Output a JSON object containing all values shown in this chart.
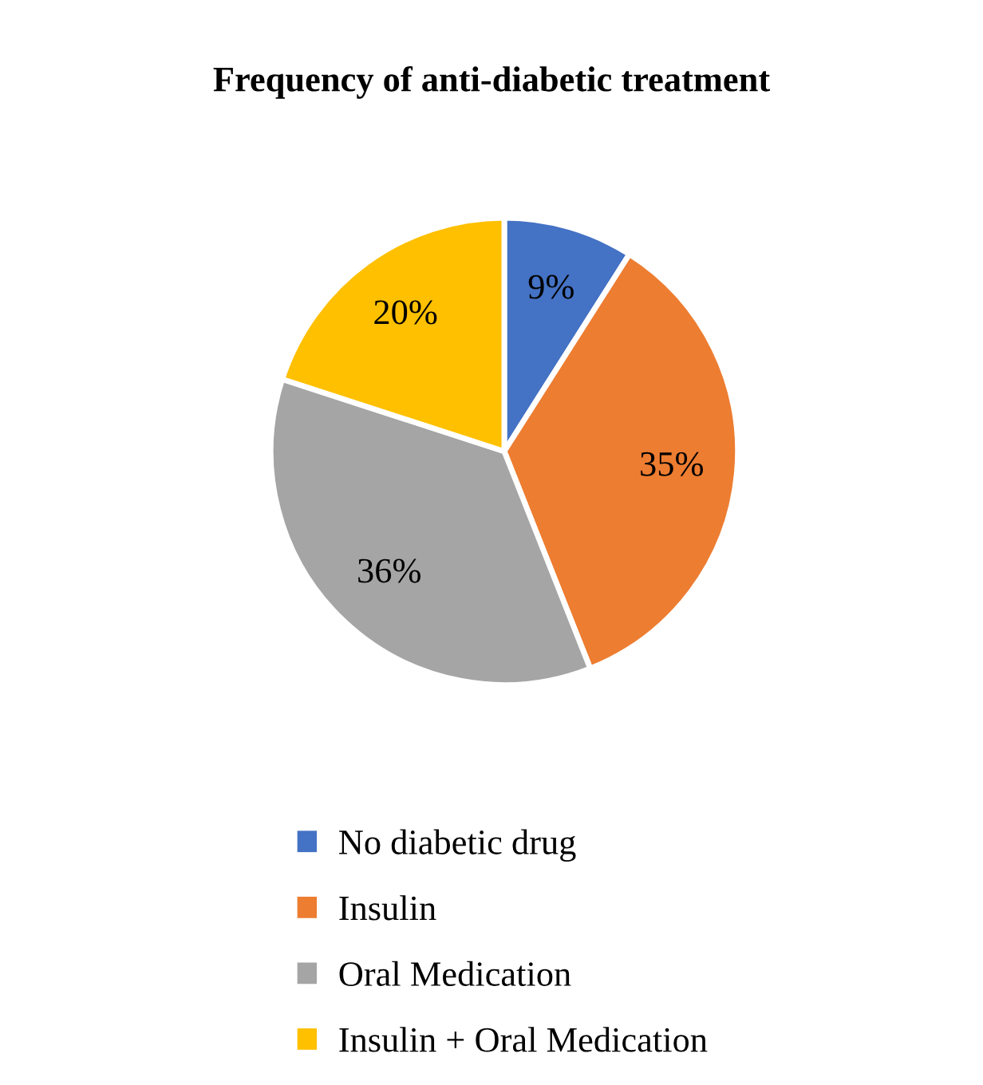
{
  "chart_data": {
    "type": "pie",
    "title": "Frequency of anti-diabetic treatment",
    "categories": [
      "No diabetic drug",
      "Insulin",
      "Oral Medication",
      "Insulin + Oral Medication"
    ],
    "values": [
      9,
      35,
      36,
      20
    ],
    "value_labels": [
      "9%",
      "35%",
      "36%",
      "20%"
    ],
    "colors": [
      "#4472c4",
      "#ed7d31",
      "#a5a5a5",
      "#ffc000"
    ],
    "legend": "bottom"
  }
}
